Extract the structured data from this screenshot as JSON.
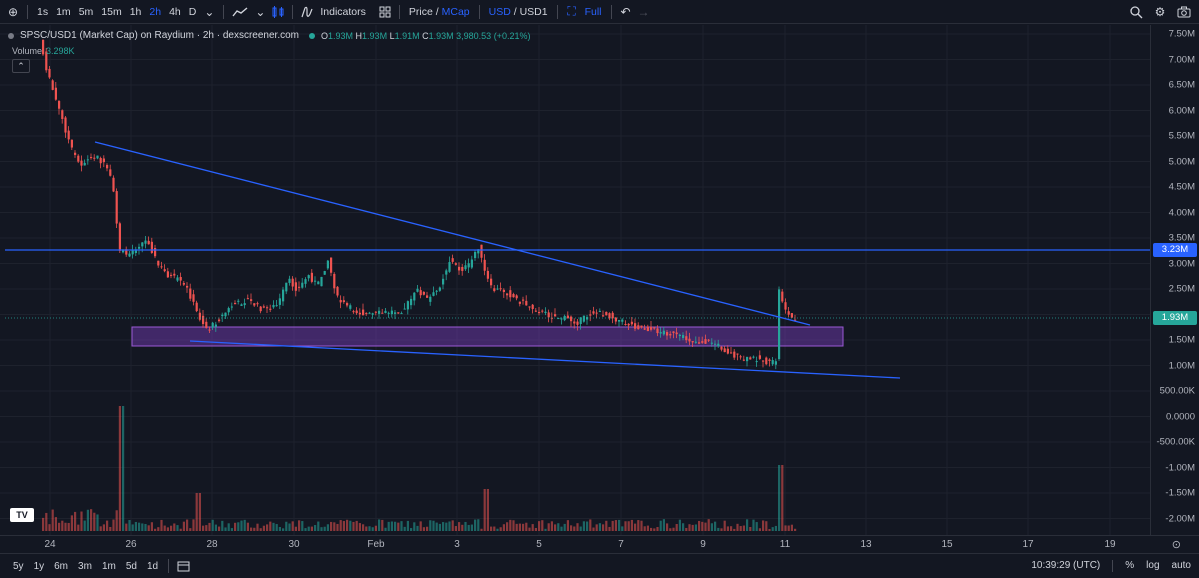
{
  "toolbar": {
    "intervals": [
      "1s",
      "1m",
      "5m",
      "15m",
      "1h",
      "2h",
      "4h",
      "D"
    ],
    "active_interval": "2h",
    "indicators_label": "Indicators",
    "price_label": "Price",
    "mcap_label": "MCap",
    "usd_label": "USD",
    "usd1_label": "USD1",
    "full_label": "Full"
  },
  "legend": {
    "title": "SPSC/USD1 (Market Cap) on Raydium · 2h · dexscreener.com",
    "o": "O",
    "o_val": "1.93M",
    "h": "H",
    "h_val": "1.93M",
    "l": "L",
    "l_val": "1.91M",
    "c": "C",
    "c_val": "1.93M",
    "change": "3,980.53 (+0.21%)",
    "volume_label": "Volume",
    "volume_val": "3.298K"
  },
  "price_axis": {
    "labels": [
      "7.50M",
      "7.00M",
      "6.50M",
      "6.00M",
      "5.50M",
      "5.00M",
      "4.50M",
      "4.00M",
      "3.50M",
      "3.00M",
      "2.50M",
      "2.00M",
      "1.50M",
      "1.00M",
      "500.00K",
      "0.0000",
      "-500.00K",
      "-1.00M",
      "-1.50M",
      "-2.00M"
    ],
    "badge_resistance": "3.23M",
    "badge_current": "1.93M"
  },
  "time_axis": {
    "labels": [
      "24",
      "26",
      "28",
      "30",
      "Feb",
      "3",
      "5",
      "7",
      "9",
      "11",
      "13",
      "15",
      "17",
      "19"
    ]
  },
  "bottombar": {
    "ranges": [
      "5y",
      "1y",
      "6m",
      "3m",
      "1m",
      "5d",
      "1d"
    ],
    "time": "10:39:29 (UTC)",
    "percent": "%",
    "log": "log",
    "auto": "auto"
  },
  "colors": {
    "up": "#26a69a",
    "down": "#ef5350",
    "line": "#2962ff",
    "zone": "#7b3fbf"
  },
  "chart_data": {
    "type": "candlestick",
    "ylim": [
      -2000000,
      7500000
    ],
    "resistance": 3230000,
    "current": 1930000,
    "zone": [
      1350000,
      1750000
    ]
  }
}
